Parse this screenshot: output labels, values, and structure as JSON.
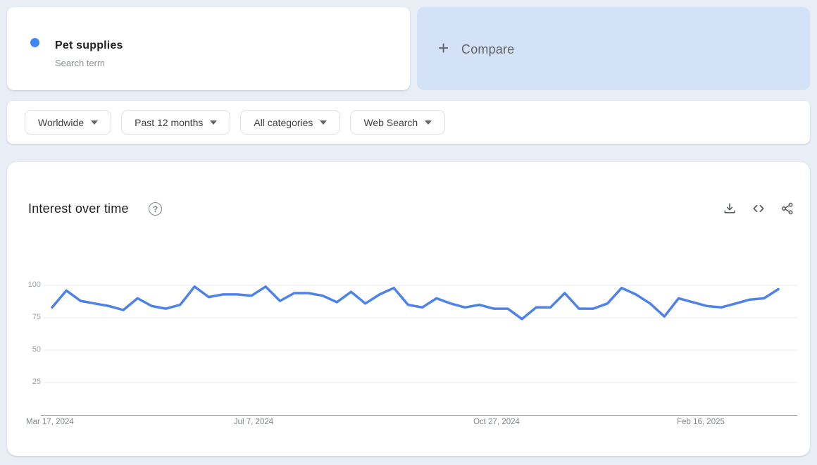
{
  "term_card": {
    "title": "Pet supplies",
    "subtitle": "Search term",
    "dot_color": "#4285f4"
  },
  "compare_card": {
    "plus": "+",
    "label": "Compare",
    "bg_color": "#d4e2f8"
  },
  "filters": [
    {
      "label": "Worldwide"
    },
    {
      "label": "Past 12 months"
    },
    {
      "label": "All categories"
    },
    {
      "label": "Web Search"
    }
  ],
  "section": {
    "title": "Interest over time",
    "help_glyph": "?"
  },
  "icons": {
    "help": "question-mark-circle",
    "download": "download-tray",
    "embed": "angle-brackets",
    "share": "share-nodes"
  },
  "colors": {
    "page_bg": "#e9eef6",
    "line": "#4e82e8",
    "gridline": "#e8eaed",
    "axis": "#9aa0a6",
    "icon_gray": "#5f6368"
  },
  "chart_data": {
    "type": "line",
    "title": "Interest over time",
    "series_name": "Pet supplies",
    "ylim": [
      0,
      100
    ],
    "y_ticks": {
      "t100": "100",
      "t75": "75",
      "t50": "50",
      "t25": "25"
    },
    "x_tick_labels": {
      "l0": "Mar 17, 2024",
      "l1": "Jul 7, 2024",
      "l2": "Oct 27, 2024",
      "l3": "Feb 16, 2025"
    },
    "grid": "horizontal",
    "legend_position": "none",
    "x": [
      "Mar 17, 2024",
      "Mar 24, 2024",
      "Mar 31, 2024",
      "Apr 7, 2024",
      "Apr 14, 2024",
      "Apr 21, 2024",
      "Apr 28, 2024",
      "May 5, 2024",
      "May 12, 2024",
      "May 19, 2024",
      "May 26, 2024",
      "Jun 2, 2024",
      "Jun 9, 2024",
      "Jun 16, 2024",
      "Jun 23, 2024",
      "Jun 30, 2024",
      "Jul 7, 2024",
      "Jul 14, 2024",
      "Jul 21, 2024",
      "Jul 28, 2024",
      "Aug 4, 2024",
      "Aug 11, 2024",
      "Aug 18, 2024",
      "Aug 25, 2024",
      "Sep 1, 2024",
      "Sep 8, 2024",
      "Sep 15, 2024",
      "Sep 22, 2024",
      "Sep 29, 2024",
      "Oct 6, 2024",
      "Oct 13, 2024",
      "Oct 20, 2024",
      "Oct 27, 2024",
      "Nov 3, 2024",
      "Nov 10, 2024",
      "Nov 17, 2024",
      "Nov 24, 2024",
      "Dec 1, 2024",
      "Dec 8, 2024",
      "Dec 15, 2024",
      "Dec 22, 2024",
      "Dec 29, 2024",
      "Jan 5, 2025",
      "Jan 12, 2025",
      "Jan 19, 2025",
      "Jan 26, 2025",
      "Feb 2, 2025",
      "Feb 9, 2025",
      "Feb 16, 2025",
      "Feb 23, 2025",
      "Mar 2, 2025",
      "Mar 9, 2025"
    ],
    "values": [
      83,
      96,
      88,
      86,
      84,
      81,
      90,
      84,
      82,
      85,
      99,
      91,
      93,
      93,
      92,
      99,
      88,
      94,
      94,
      92,
      87,
      95,
      86,
      93,
      98,
      85,
      83,
      90,
      86,
      83,
      85,
      82,
      82,
      74,
      83,
      83,
      94,
      82,
      82,
      86,
      98,
      93,
      86,
      76,
      90,
      87,
      84,
      83,
      86,
      89,
      90,
      97
    ]
  }
}
